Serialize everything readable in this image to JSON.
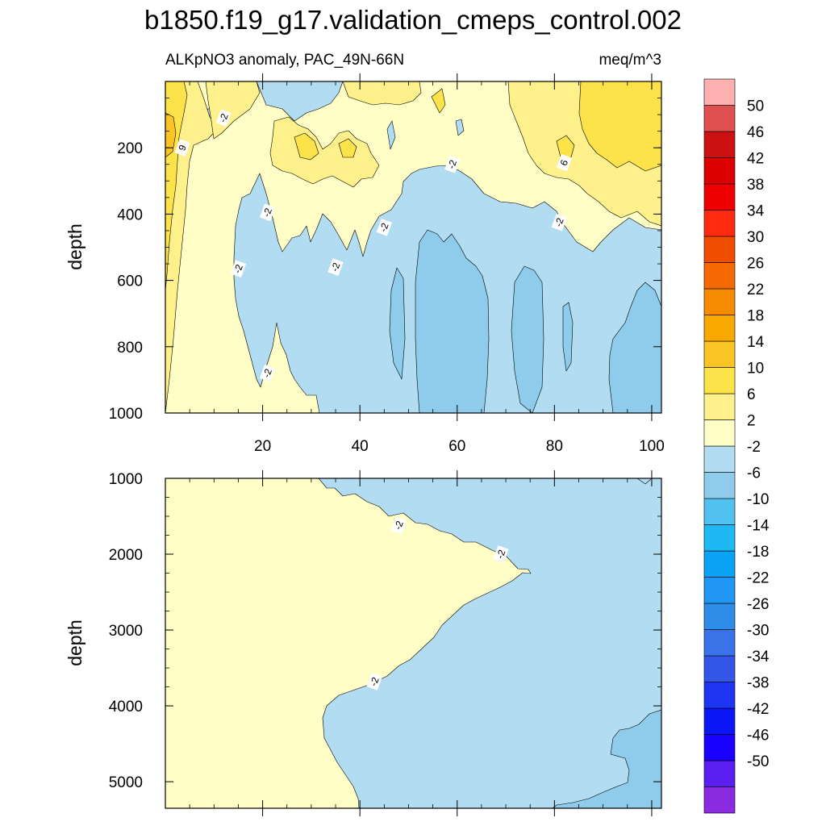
{
  "title": "b1850.f19_g17.validation_cmeps_control.002",
  "subtitle_left": "ALKpNO3 anomaly, PAC_49N-66N",
  "subtitle_right": "meq/m^3",
  "colors": {
    "lt-10": "#8fcbea",
    "-6to-2": "#b2dcf2",
    "-2to2": "#fefec6",
    "2to6": "#fef08a",
    "6to10": "#fde34a",
    "10to14": "#fac424",
    "line": "#000000",
    "colorbar": [
      "#8a2be2",
      "#5a1ef0",
      "#1a00ff",
      "#0a16f5",
      "#1e36f2",
      "#3356e6",
      "#3a72ea",
      "#2e8de8",
      "#2196f3",
      "#0aa3f5",
      "#1eb9f5",
      "#52c3f0",
      "#8fcbea",
      "#b2dcf2",
      "#fefec6",
      "#fef08a",
      "#fde34a",
      "#fac424",
      "#f8a800",
      "#f68a00",
      "#f56a00",
      "#f04d00",
      "#ff2a10",
      "#ee0000",
      "#dd0000",
      "#cc1111",
      "#e05050",
      "#fcb0b0"
    ]
  },
  "chart_data": [
    {
      "type": "contour",
      "panel": "upper",
      "title": "ALKpNO3 anomaly, PAC_49N-66N",
      "units": "meq/m^3",
      "xlabel": "",
      "ylabel": "depth",
      "xlim": [
        0,
        102
      ],
      "ylim": [
        1000,
        0
      ],
      "xticks": [
        20,
        40,
        60,
        80,
        100
      ],
      "yticks": [
        200,
        400,
        600,
        800,
        1000
      ],
      "contour_labels": [
        {
          "text": "-2",
          "x": 12,
          "y": 110
        },
        {
          "text": "9",
          "x": 3.5,
          "y": 200
        },
        {
          "text": "-2",
          "x": 21,
          "y": 395
        },
        {
          "text": "-2",
          "x": 15,
          "y": 565
        },
        {
          "text": "-2",
          "x": 35,
          "y": 560
        },
        {
          "text": "-2",
          "x": 45,
          "y": 440
        },
        {
          "text": "-2",
          "x": 59,
          "y": 250
        },
        {
          "text": "6",
          "x": 82,
          "y": 245
        },
        {
          "text": "-2",
          "x": 81,
          "y": 425
        },
        {
          "text": "-2",
          "x": 21,
          "y": 880
        }
      ]
    },
    {
      "type": "contour",
      "panel": "lower",
      "xlabel": "",
      "ylabel": "depth",
      "xlim": [
        0,
        102
      ],
      "ylim": [
        5350,
        1000
      ],
      "yticks": [
        1000,
        2000,
        3000,
        4000,
        5000
      ],
      "contour_labels": [
        {
          "text": "-2",
          "x": 48,
          "y": 1620
        },
        {
          "text": "-2",
          "x": 69,
          "y": 2000
        },
        {
          "text": "-2",
          "x": 43,
          "y": 3680
        }
      ]
    }
  ],
  "colorbar": {
    "labels": [
      "50",
      "46",
      "42",
      "38",
      "34",
      "30",
      "26",
      "22",
      "18",
      "14",
      "10",
      "6",
      "2",
      "-2",
      "-6",
      "-10",
      "-14",
      "-18",
      "-22",
      "-26",
      "-30",
      "-34",
      "-38",
      "-42",
      "-46",
      "-50"
    ]
  }
}
